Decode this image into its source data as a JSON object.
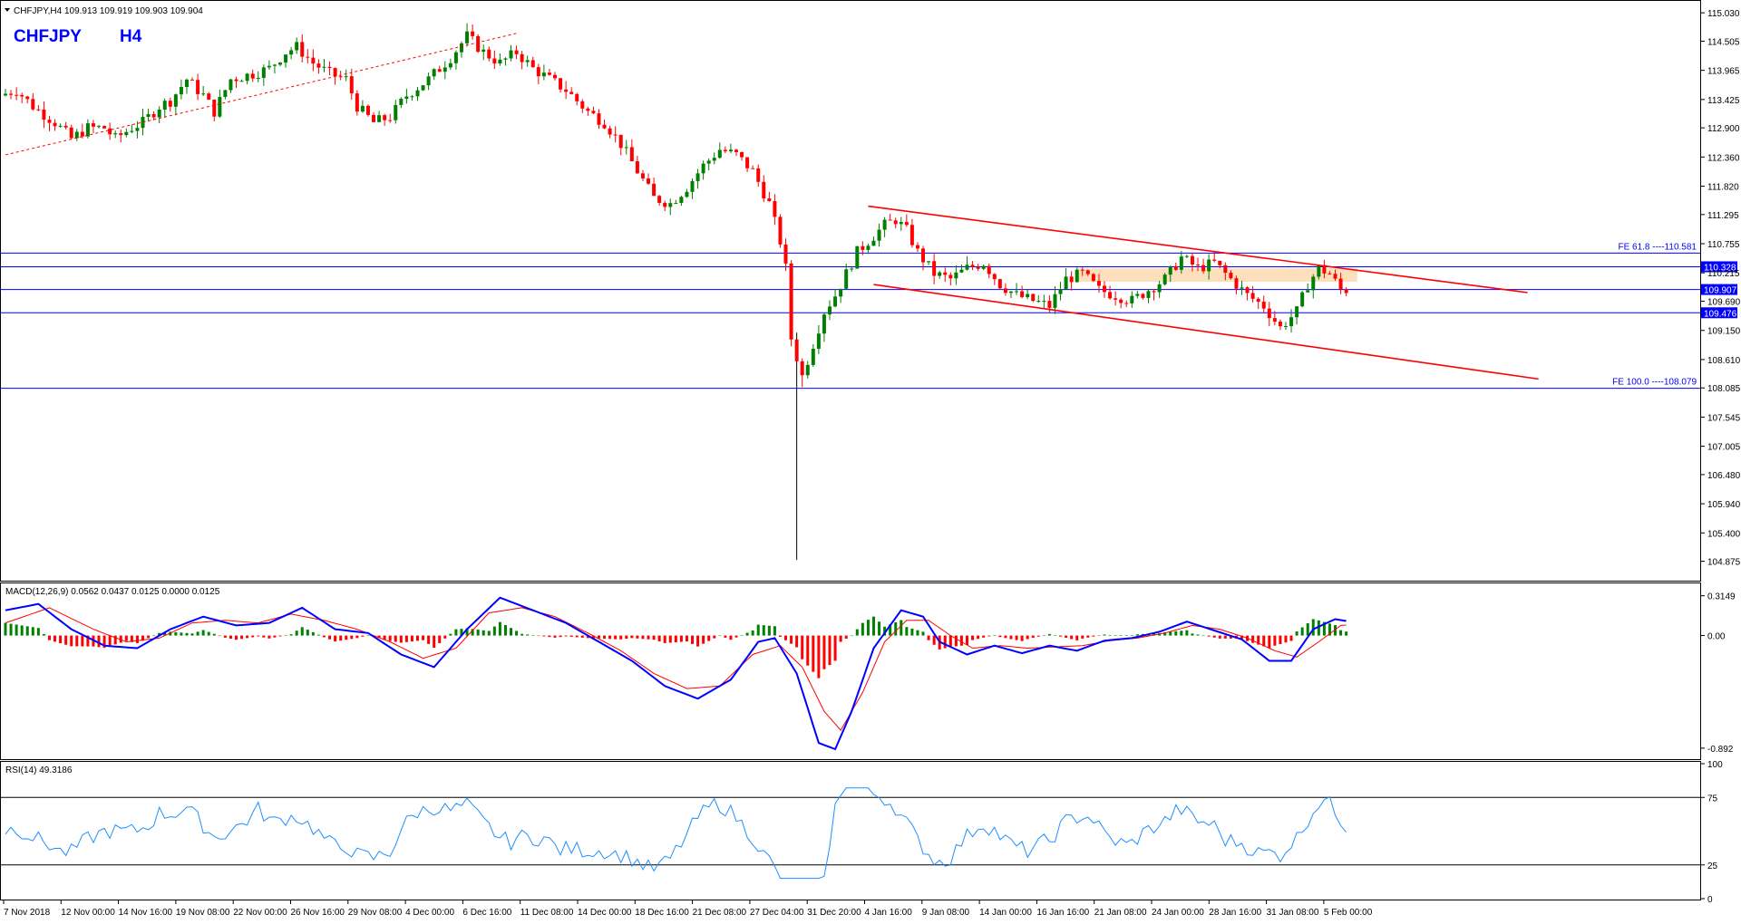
{
  "header": {
    "info": "CHFJPY,H4  109.913 109.919 109.903 109.904",
    "symbol": "CHFJPY",
    "timeframe": "H4"
  },
  "colors": {
    "bull": "#008000",
    "bear": "#ff0000",
    "level": "#0000ff",
    "channel": "#ff0000",
    "zone": "#fbd9b0",
    "macd_line": "#0000ff",
    "signal_line": "#ff0000",
    "rsi_line": "#1e90ff"
  },
  "chart_data": [
    {
      "type": "candlestick",
      "price_axis": {
        "range": [
          104.6,
          115.2
        ],
        "ticks": [
          "115.030",
          "114.505",
          "113.965",
          "113.425",
          "112.900",
          "112.360",
          "111.820",
          "111.295",
          "110.755",
          "110.215",
          "109.690",
          "109.150",
          "108.610",
          "108.085",
          "107.545",
          "107.005",
          "106.480",
          "105.940",
          "105.400",
          "104.875"
        ]
      },
      "time_axis": {
        "labels": [
          "7 Nov 2018",
          "12 Nov 00:00",
          "14 Nov 16:00",
          "19 Nov 08:00",
          "22 Nov 00:00",
          "26 Nov 16:00",
          "29 Nov 08:00",
          "4 Dec 00:00",
          "6 Dec 16:00",
          "11 Dec 08:00",
          "14 Dec 00:00",
          "18 Dec 16:00",
          "21 Dec 08:00",
          "27 Dec 04:00",
          "31 Dec 20:00",
          "4 Jan 16:00",
          "9 Jan 08:00",
          "14 Jan 00:00",
          "16 Jan 16:00",
          "21 Jan 08:00",
          "24 Jan 00:00",
          "28 Jan 16:00",
          "31 Jan 08:00",
          "5 Feb 00:00"
        ]
      },
      "price_path": [
        [
          0,
          113.5
        ],
        [
          3,
          113.6
        ],
        [
          6,
          113.3
        ],
        [
          10,
          113.0
        ],
        [
          13,
          112.7
        ],
        [
          16,
          112.9
        ],
        [
          19,
          112.9
        ],
        [
          21,
          112.7
        ],
        [
          24,
          112.9
        ],
        [
          26,
          113.0
        ],
        [
          29,
          113.3
        ],
        [
          31,
          113.4
        ],
        [
          34,
          113.8
        ],
        [
          37,
          113.5
        ],
        [
          39,
          113.2
        ],
        [
          42,
          113.8
        ],
        [
          46,
          113.9
        ],
        [
          49,
          114.0
        ],
        [
          52,
          114.3
        ],
        [
          54,
          114.4
        ],
        [
          57,
          114.1
        ],
        [
          60,
          113.9
        ],
        [
          63,
          113.8
        ],
        [
          65,
          113.3
        ],
        [
          68,
          113.0
        ],
        [
          71,
          113.1
        ],
        [
          74,
          113.5
        ],
        [
          78,
          113.8
        ],
        [
          82,
          114.2
        ],
        [
          85,
          114.6
        ],
        [
          88,
          114.3
        ],
        [
          91,
          114.1
        ],
        [
          94,
          114.3
        ],
        [
          97,
          114.0
        ],
        [
          100,
          113.8
        ],
        [
          103,
          113.6
        ],
        [
          107,
          113.2
        ],
        [
          110,
          113.0
        ],
        [
          113,
          112.6
        ],
        [
          116,
          112.1
        ],
        [
          119,
          111.6
        ],
        [
          122,
          111.5
        ],
        [
          125,
          111.8
        ],
        [
          128,
          112.2
        ],
        [
          131,
          112.5
        ],
        [
          134,
          112.4
        ],
        [
          137,
          112.1
        ],
        [
          140,
          111.5
        ],
        [
          142,
          110.8
        ],
        [
          143,
          110.3
        ],
        [
          144,
          109.0
        ],
        [
          146,
          108.3
        ],
        [
          148,
          108.9
        ],
        [
          150,
          109.5
        ],
        [
          152,
          109.8
        ],
        [
          154,
          110.2
        ],
        [
          156,
          110.6
        ],
        [
          159,
          110.9
        ],
        [
          161,
          111.1
        ],
        [
          163,
          111.2
        ],
        [
          165,
          111.0
        ],
        [
          167,
          110.6
        ],
        [
          170,
          110.2
        ],
        [
          173,
          110.1
        ],
        [
          176,
          110.3
        ],
        [
          179,
          110.4
        ],
        [
          182,
          110.0
        ],
        [
          185,
          109.8
        ],
        [
          188,
          109.7
        ],
        [
          191,
          109.6
        ],
        [
          194,
          110.1
        ],
        [
          197,
          110.2
        ],
        [
          200,
          109.9
        ],
        [
          203,
          109.8
        ],
        [
          206,
          109.7
        ],
        [
          209,
          109.9
        ],
        [
          212,
          110.1
        ],
        [
          215,
          110.5
        ],
        [
          218,
          110.3
        ],
        [
          221,
          110.4
        ],
        [
          224,
          110.1
        ],
        [
          227,
          109.8
        ],
        [
          230,
          109.6
        ],
        [
          233,
          109.2
        ],
        [
          236,
          109.5
        ],
        [
          238,
          110.0
        ],
        [
          240,
          110.3
        ],
        [
          242,
          110.2
        ],
        [
          244,
          109.9
        ]
      ],
      "levels": [
        {
          "price": 110.581,
          "label": "FE 61.8 ----110.581",
          "tag": ""
        },
        {
          "price": 110.328,
          "label": "",
          "tag": "110.328"
        },
        {
          "price": 109.907,
          "label": "",
          "tag": "109.907"
        },
        {
          "price": 109.476,
          "label": "",
          "tag": "109.476"
        },
        {
          "price": 108.079,
          "label": "FE 100.0 ----108.079",
          "tag": ""
        }
      ],
      "channel": {
        "upper": [
          [
            157,
            111.45
          ],
          [
            277,
            109.85
          ]
        ],
        "lower": [
          [
            158,
            110.0
          ],
          [
            279,
            108.25
          ]
        ],
        "dashed_trend": [
          [
            0,
            112.4
          ],
          [
            93,
            114.65
          ]
        ]
      },
      "resistance_zone": {
        "price_range": [
          110.05,
          110.3
        ],
        "bar_range": [
          195,
          246
        ]
      }
    },
    {
      "type": "macd",
      "title": "MACD(12,26,9) 0.0562 0.0437 0.0125 0.0000 0.0125",
      "range": [
        -0.95,
        0.37
      ],
      "ticks": [
        "0.3149",
        "0.00",
        "-0.892"
      ],
      "macd_path": [
        [
          0,
          0.2
        ],
        [
          6,
          0.25
        ],
        [
          12,
          0.05
        ],
        [
          18,
          -0.08
        ],
        [
          24,
          -0.1
        ],
        [
          30,
          0.05
        ],
        [
          36,
          0.15
        ],
        [
          42,
          0.08
        ],
        [
          48,
          0.1
        ],
        [
          54,
          0.22
        ],
        [
          60,
          0.05
        ],
        [
          66,
          0.02
        ],
        [
          72,
          -0.15
        ],
        [
          78,
          -0.25
        ],
        [
          84,
          0.05
        ],
        [
          90,
          0.3
        ],
        [
          96,
          0.2
        ],
        [
          102,
          0.1
        ],
        [
          108,
          -0.05
        ],
        [
          114,
          -0.2
        ],
        [
          120,
          -0.4
        ],
        [
          126,
          -0.5
        ],
        [
          132,
          -0.35
        ],
        [
          137,
          -0.05
        ],
        [
          140,
          -0.02
        ],
        [
          144,
          -0.3
        ],
        [
          148,
          -0.85
        ],
        [
          151,
          -0.9
        ],
        [
          154,
          -0.6
        ],
        [
          158,
          -0.1
        ],
        [
          163,
          0.2
        ],
        [
          167,
          0.15
        ],
        [
          170,
          -0.05
        ],
        [
          175,
          -0.15
        ],
        [
          180,
          -0.08
        ],
        [
          185,
          -0.14
        ],
        [
          190,
          -0.08
        ],
        [
          195,
          -0.12
        ],
        [
          200,
          -0.04
        ],
        [
          205,
          -0.02
        ],
        [
          210,
          0.03
        ],
        [
          215,
          0.11
        ],
        [
          220,
          0.04
        ],
        [
          225,
          -0.03
        ],
        [
          230,
          -0.2
        ],
        [
          234,
          -0.2
        ],
        [
          238,
          0.05
        ],
        [
          242,
          0.13
        ],
        [
          246,
          0.1
        ]
      ],
      "signal_path": [
        [
          0,
          0.1
        ],
        [
          8,
          0.22
        ],
        [
          16,
          0.05
        ],
        [
          22,
          -0.05
        ],
        [
          28,
          -0.02
        ],
        [
          34,
          0.1
        ],
        [
          40,
          0.12
        ],
        [
          46,
          0.1
        ],
        [
          52,
          0.17
        ],
        [
          58,
          0.12
        ],
        [
          64,
          0.05
        ],
        [
          70,
          -0.05
        ],
        [
          76,
          -0.18
        ],
        [
          82,
          -0.1
        ],
        [
          88,
          0.18
        ],
        [
          94,
          0.22
        ],
        [
          100,
          0.15
        ],
        [
          106,
          0.02
        ],
        [
          112,
          -0.12
        ],
        [
          118,
          -0.3
        ],
        [
          124,
          -0.42
        ],
        [
          130,
          -0.4
        ],
        [
          136,
          -0.15
        ],
        [
          141,
          -0.08
        ],
        [
          145,
          -0.25
        ],
        [
          149,
          -0.6
        ],
        [
          152,
          -0.75
        ],
        [
          156,
          -0.45
        ],
        [
          160,
          -0.05
        ],
        [
          164,
          0.12
        ],
        [
          168,
          0.12
        ],
        [
          172,
          0.0
        ],
        [
          176,
          -0.1
        ],
        [
          181,
          -0.08
        ],
        [
          186,
          -0.1
        ],
        [
          191,
          -0.09
        ],
        [
          196,
          -0.08
        ],
        [
          201,
          -0.04
        ],
        [
          206,
          -0.02
        ],
        [
          211,
          0.02
        ],
        [
          216,
          0.08
        ],
        [
          221,
          0.05
        ],
        [
          226,
          -0.02
        ],
        [
          231,
          -0.12
        ],
        [
          235,
          -0.17
        ],
        [
          239,
          -0.05
        ],
        [
          243,
          0.08
        ],
        [
          246,
          0.09
        ]
      ]
    },
    {
      "type": "rsi",
      "title": "RSI(14) 49.3186",
      "range": [
        0,
        100
      ],
      "levels": [
        75,
        25
      ],
      "ticks": [
        "100",
        "75",
        "25",
        "0"
      ]
    }
  ]
}
